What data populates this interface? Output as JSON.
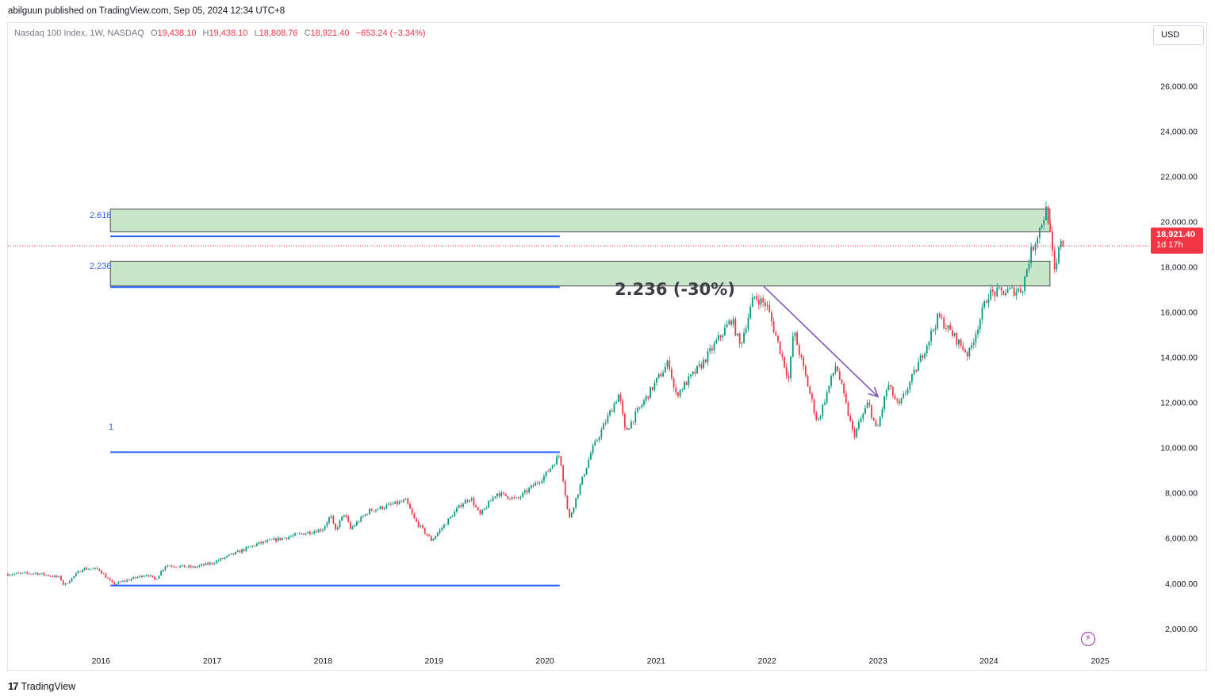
{
  "header": {
    "caption": "abilguun published on TradingView.com, Sep 05, 2024 12:34 UTC+8"
  },
  "legend": {
    "symbol": "Nasdaq 100 Index, 1W, NASDAQ",
    "o_label": "O",
    "o": "19,438.10",
    "h_label": "H",
    "h": "19,438.10",
    "l_label": "L",
    "l": "18,808.76",
    "c_label": "C",
    "c": "18,921.40",
    "change": "−653.24 (−3.34%)"
  },
  "currency": "USD",
  "price_tag": {
    "price": "18,921.40",
    "countdown": "1d 17h"
  },
  "annotation": "2.236 (-30%)",
  "footer": {
    "brand": "TradingView"
  },
  "colors": {
    "up": "#089981",
    "down": "#f23645",
    "fib": "#2962ff",
    "zone_fill": "#c8e6c9",
    "arrow": "#7e57c2"
  },
  "chart_data": {
    "type": "candlestick",
    "x_axis": {
      "type": "date",
      "ticks": [
        "2016",
        "2017",
        "2018",
        "2019",
        "2020",
        "2021",
        "2022",
        "2023",
        "2024",
        "2025"
      ],
      "range": [
        "2015-03-01",
        "2025-06-01"
      ]
    },
    "y_axis": {
      "ticks": [
        2000,
        4000,
        6000,
        8000,
        10000,
        12000,
        14000,
        16000,
        18000,
        20000,
        22000,
        24000,
        26000
      ],
      "tick_labels": [
        "2,000.00",
        "4,000.00",
        "6,000.00",
        "8,000.00",
        "10,000.00",
        "12,000.00",
        "14,000.00",
        "16,000.00",
        "18,000.00",
        "20,000.00",
        "22,000.00",
        "24,000.00",
        "26,000.00"
      ],
      "range": [
        870,
        27700
      ],
      "position": "right"
    },
    "last_price": 18921.4,
    "path_points": [
      [
        "2015-03-01",
        4400
      ],
      [
        "2015-06-01",
        4450
      ],
      [
        "2015-08-20",
        4250
      ],
      [
        "2015-09-01",
        3900
      ],
      [
        "2015-11-01",
        4650
      ],
      [
        "2015-12-25",
        4620
      ],
      [
        "2016-02-10",
        3950
      ],
      [
        "2016-06-01",
        4400
      ],
      [
        "2016-06-27",
        4150
      ],
      [
        "2016-08-01",
        4800
      ],
      [
        "2016-11-01",
        4700
      ],
      [
        "2017-01-01",
        4900
      ],
      [
        "2017-06-01",
        5750
      ],
      [
        "2017-12-31",
        6400
      ],
      [
        "2018-01-26",
        7000
      ],
      [
        "2018-02-09",
        6300
      ],
      [
        "2018-03-12",
        7100
      ],
      [
        "2018-04-01",
        6400
      ],
      [
        "2018-06-01",
        7200
      ],
      [
        "2018-10-01",
        7650
      ],
      [
        "2018-10-29",
        6800
      ],
      [
        "2018-12-24",
        5900
      ],
      [
        "2019-04-01",
        7500
      ],
      [
        "2019-05-01",
        7800
      ],
      [
        "2019-06-01",
        7000
      ],
      [
        "2019-07-26",
        8000
      ],
      [
        "2019-10-01",
        7700
      ],
      [
        "2019-12-31",
        8750
      ],
      [
        "2020-02-19",
        9700
      ],
      [
        "2020-03-20",
        6800
      ],
      [
        "2020-06-01",
        9800
      ],
      [
        "2020-09-01",
        12400
      ],
      [
        "2020-09-21",
        10700
      ],
      [
        "2020-12-31",
        12900
      ],
      [
        "2021-02-12",
        13800
      ],
      [
        "2021-03-05",
        12300
      ],
      [
        "2021-06-01",
        13700
      ],
      [
        "2021-09-07",
        15700
      ],
      [
        "2021-10-04",
        14500
      ],
      [
        "2021-11-19",
        16700
      ],
      [
        "2021-12-31",
        16300
      ],
      [
        "2022-03-14",
        13000
      ],
      [
        "2022-03-29",
        15200
      ],
      [
        "2022-06-16",
        11100
      ],
      [
        "2022-08-16",
        13700
      ],
      [
        "2022-10-13",
        10500
      ],
      [
        "2022-11-30",
        12000
      ],
      [
        "2022-12-28",
        10700
      ],
      [
        "2023-02-02",
        12800
      ],
      [
        "2023-03-10",
        11800
      ],
      [
        "2023-05-01",
        13300
      ],
      [
        "2023-07-19",
        15800
      ],
      [
        "2023-10-26",
        14100
      ],
      [
        "2023-12-29",
        16800
      ],
      [
        "2024-04-19",
        17000
      ],
      [
        "2024-05-15",
        18500
      ],
      [
        "2024-07-10",
        20600
      ],
      [
        "2024-08-05",
        17600
      ],
      [
        "2024-08-29",
        19600
      ],
      [
        "2024-09-05",
        18921.4
      ]
    ],
    "fibonacci": [
      {
        "label": "1",
        "price": 9800
      },
      {
        "label": "",
        "price": 3900
      },
      {
        "label": "2.236",
        "price": 17100
      },
      {
        "label": "2.618",
        "price": 19350
      }
    ],
    "zones": [
      {
        "from": 19550,
        "to": 20550,
        "start": "2016-02-01",
        "end": "2024-07-20"
      },
      {
        "from": 17150,
        "to": 18250,
        "start": "2016-02-01",
        "end": "2024-07-20"
      }
    ],
    "fib_start": "2016-02-01",
    "fib_end": "2020-02-19",
    "arrow": {
      "from": [
        "2021-12-20",
        17150
      ],
      "to": [
        "2023-01-01",
        12250
      ]
    },
    "grid": false,
    "legend_position": "top-left"
  }
}
